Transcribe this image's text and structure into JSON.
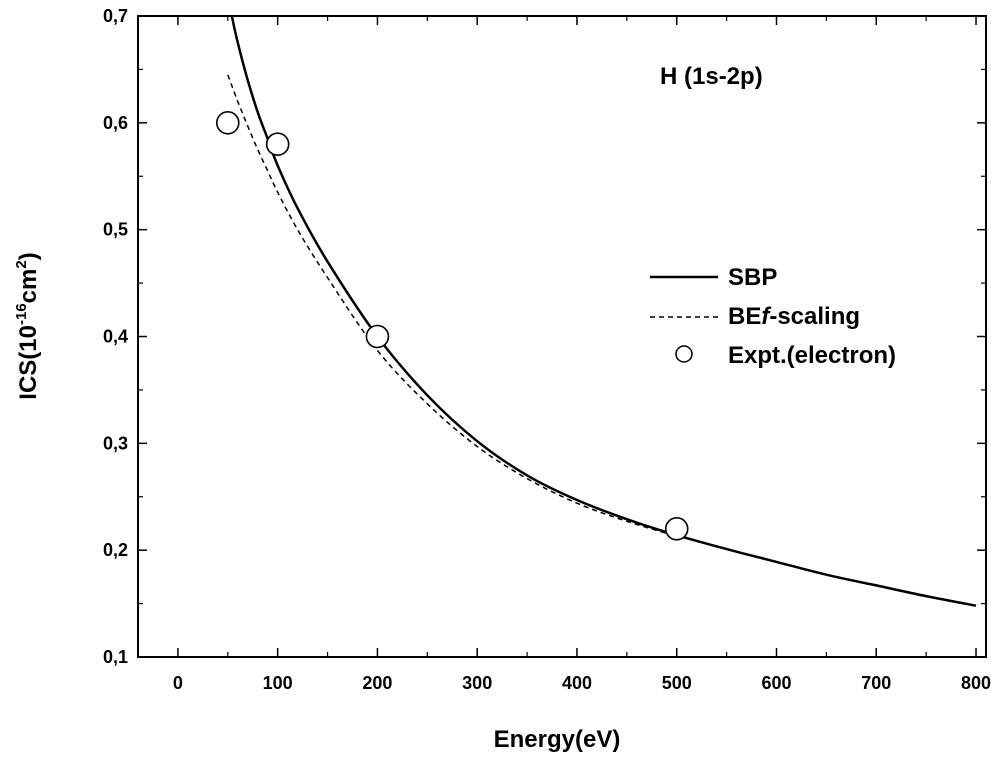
{
  "chart_data": {
    "type": "line",
    "xlabel": "Energy(eV)",
    "ylabel": {
      "base": "ICS(10",
      "exp1": "-16",
      "mid": "cm",
      "exp2": "2",
      "close": ")"
    },
    "annotation": "H (1s-2p)",
    "xlim": [
      -40,
      810
    ],
    "ylim": [
      0.1,
      0.7
    ],
    "xticks": [
      0,
      100,
      200,
      300,
      400,
      500,
      600,
      700,
      800
    ],
    "xtick_labels": [
      "0",
      "100",
      "200",
      "300",
      "400",
      "500",
      "600",
      "700",
      "800"
    ],
    "yticks": [
      0.1,
      0.2,
      0.3,
      0.4,
      0.5,
      0.6,
      0.7
    ],
    "ytick_labels": [
      "0,1",
      "0,2",
      "0,3",
      "0,4",
      "0,5",
      "0,6",
      "0,7"
    ],
    "grid": false,
    "legend_position": "right",
    "series": [
      {
        "name": "SBP",
        "style": "solid",
        "x": [
          54,
          60,
          70,
          80,
          90,
          100,
          120,
          150,
          200,
          250,
          300,
          350,
          400,
          450,
          500,
          550,
          600,
          650,
          700,
          750,
          800
        ],
        "y": [
          0.7,
          0.675,
          0.64,
          0.61,
          0.585,
          0.56,
          0.52,
          0.47,
          0.4,
          0.345,
          0.302,
          0.27,
          0.247,
          0.229,
          0.214,
          0.201,
          0.189,
          0.177,
          0.167,
          0.157,
          0.148
        ]
      },
      {
        "name": "BEf-scaling",
        "name_parts": [
          "BE",
          "f",
          "-scaling"
        ],
        "style": "dashed",
        "x": [
          50,
          60,
          70,
          80,
          90,
          100,
          120,
          150,
          200,
          250,
          300,
          350,
          400,
          450,
          500
        ],
        "y": [
          0.645,
          0.62,
          0.597,
          0.575,
          0.555,
          0.535,
          0.5,
          0.455,
          0.387,
          0.337,
          0.297,
          0.267,
          0.244,
          0.227,
          0.213
        ]
      },
      {
        "name": "Expt.(electron)",
        "style": "open-circle",
        "x": [
          50,
          100,
          200,
          500
        ],
        "y": [
          0.6,
          0.58,
          0.4,
          0.22
        ]
      }
    ]
  }
}
